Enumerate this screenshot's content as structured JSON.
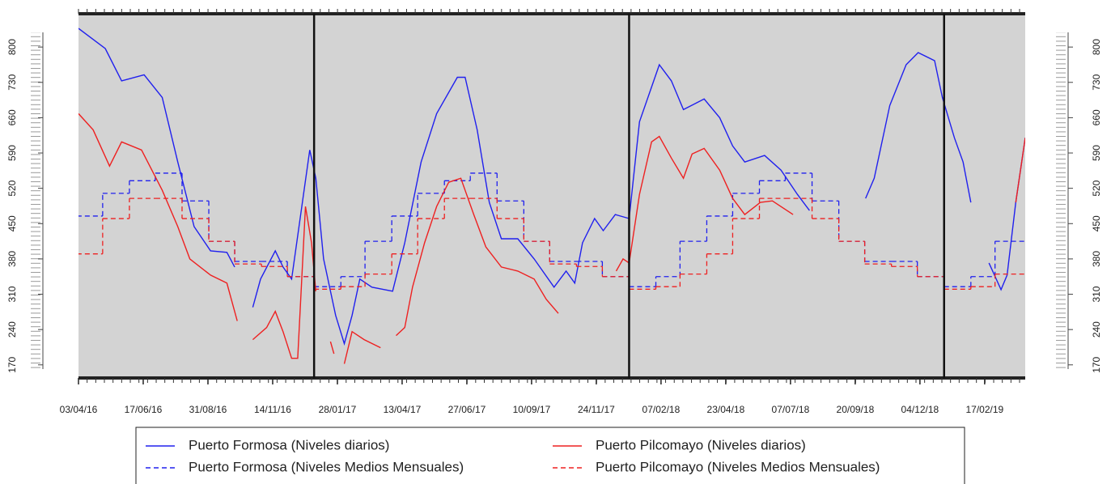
{
  "chart_data": {
    "type": "line",
    "xlim": [
      "2016-04-03",
      "2019-04-05"
    ],
    "ylim": [
      144,
      866
    ],
    "yticks": [
      170,
      240,
      310,
      380,
      450,
      520,
      590,
      660,
      730,
      800
    ],
    "xticks": [
      {
        "value": "2016-04-03",
        "label": "03/04/16"
      },
      {
        "value": "2016-06-17",
        "label": "17/06/16"
      },
      {
        "value": "2016-08-31",
        "label": "31/08/16"
      },
      {
        "value": "2016-11-14",
        "label": "14/11/16"
      },
      {
        "value": "2017-01-28",
        "label": "28/01/17"
      },
      {
        "value": "2017-04-13",
        "label": "13/04/17"
      },
      {
        "value": "2017-06-27",
        "label": "27/06/17"
      },
      {
        "value": "2017-09-10",
        "label": "10/09/17"
      },
      {
        "value": "2017-11-24",
        "label": "24/11/17"
      },
      {
        "value": "2018-02-07",
        "label": "07/02/18"
      },
      {
        "value": "2018-04-23",
        "label": "23/04/18"
      },
      {
        "value": "2018-07-07",
        "label": "07/07/18"
      },
      {
        "value": "2018-09-20",
        "label": "20/09/18"
      },
      {
        "value": "2018-12-04",
        "label": "04/12/18"
      },
      {
        "value": "2019-02-17",
        "label": "17/02/19"
      }
    ],
    "vlines": [
      "2017-01-01",
      "2018-01-01",
      "2019-01-01"
    ],
    "grid": false,
    "legend": "bottom",
    "series": [
      {
        "name": "Puerto Formosa (Niveles diarios)",
        "color": "#2020ee",
        "style": "solid",
        "x": [
          "2016-04-03",
          "2016-05-04",
          "2016-05-23",
          "2016-06-18",
          "2016-07-09",
          "2016-07-27",
          "2016-08-15",
          "2016-09-03",
          "2016-09-22",
          "2016-10-01",
          null,
          "2016-10-22",
          "2016-10-31",
          "2016-11-17",
          "2016-11-26",
          "2016-12-06",
          "2016-12-27",
          "2017-01-03",
          "2017-01-12",
          "2017-01-26",
          "2017-02-05",
          "2017-02-14",
          "2017-02-23",
          "2017-03-09",
          "2017-04-02",
          "2017-04-16",
          "2017-05-05",
          "2017-05-23",
          "2017-06-16",
          "2017-06-25",
          "2017-07-09",
          "2017-07-23",
          "2017-08-06",
          "2017-08-25",
          "2017-09-13",
          "2017-10-06",
          "2017-10-20",
          "2017-10-30",
          "2017-11-08",
          "2017-11-22",
          "2017-12-02",
          "2017-12-16",
          "2018-01-01",
          "2018-01-13",
          "2018-02-05",
          "2018-02-19",
          "2018-03-05",
          "2018-03-29",
          "2018-04-16",
          "2018-05-01",
          "2018-05-15",
          "2018-06-07",
          "2018-06-26",
          "2018-07-15",
          "2018-07-29",
          null,
          "2018-10-02",
          "2018-10-12",
          "2018-10-30",
          "2018-11-18",
          "2018-12-02",
          "2018-12-21",
          "2018-12-30",
          "2019-01-13",
          "2019-01-23",
          "2019-02-01",
          null,
          "2019-02-22",
          "2019-03-08",
          "2019-03-15",
          "2019-03-25",
          "2019-04-05"
        ],
        "values": [
          837,
          797,
          733,
          745,
          700,
          572,
          444,
          396,
          393,
          364,
          null,
          284,
          340,
          396,
          364,
          340,
          596,
          540,
          380,
          268,
          212,
          268,
          340,
          324,
          316,
          412,
          572,
          668,
          740,
          740,
          636,
          492,
          420,
          420,
          380,
          324,
          356,
          332,
          412,
          460,
          436,
          468,
          460,
          652,
          765,
          733,
          676,
          697,
          660,
          604,
          572,
          585,
          556,
          508,
          476,
          null,
          500,
          540,
          684,
          765,
          789,
          773,
          700,
          620,
          572,
          492,
          null,
          372,
          319,
          348,
          492,
          620
        ]
      },
      {
        "name": "Puerto Formosa (Niveles Medios Mensuales)",
        "color": "#2020ee",
        "style": "dashed",
        "x": [
          "2016-04-01",
          "2016-05-01",
          "2016-06-01",
          "2016-07-01",
          "2016-08-01",
          "2016-09-01",
          "2016-10-01",
          "2016-11-01",
          "2016-12-01",
          "2017-01-01",
          "2017-02-01",
          "2017-03-01",
          "2017-04-01",
          "2017-05-01",
          "2017-06-01",
          "2017-07-01",
          "2017-08-01",
          "2017-09-01",
          "2017-10-01",
          "2017-11-01",
          "2017-12-01",
          "2018-01-01",
          "2018-02-01",
          "2018-03-01",
          "2018-04-01",
          "2018-05-01",
          "2018-06-01",
          "2018-07-01",
          "2018-08-01",
          "2018-09-01",
          "2018-10-01",
          "2018-11-01",
          "2018-12-01",
          "2019-01-01",
          "2019-02-01",
          "2019-03-01"
        ],
        "values": [
          465,
          510,
          535,
          550,
          495,
          415,
          375,
          375,
          345,
          325,
          345,
          415,
          465,
          510,
          535,
          550,
          495,
          415,
          375,
          375,
          345,
          325,
          345,
          415,
          465,
          510,
          535,
          550,
          495,
          415,
          375,
          375,
          345,
          325,
          345,
          415
        ]
      },
      {
        "name": "Puerto Pilcomayo (Niveles diarios)",
        "color": "#ee2020",
        "style": "solid",
        "x": [
          "2016-04-03",
          "2016-04-20",
          "2016-05-09",
          "2016-05-23",
          "2016-06-15",
          "2016-07-09",
          "2016-07-27",
          "2016-08-10",
          "2016-09-03",
          "2016-09-22",
          "2016-10-04",
          null,
          "2016-10-22",
          "2016-11-07",
          "2016-11-17",
          "2016-11-26",
          "2016-12-06",
          "2016-12-13",
          "2016-12-22",
          "2016-12-29",
          "2017-01-03",
          null,
          "2017-01-20",
          "2017-01-24",
          null,
          "2017-02-05",
          "2017-02-14",
          "2017-02-28",
          "2017-03-19",
          null,
          "2017-04-06",
          "2017-04-16",
          "2017-04-25",
          "2017-05-09",
          "2017-05-23",
          "2017-06-06",
          "2017-06-20",
          "2017-07-05",
          "2017-07-19",
          "2017-08-06",
          "2017-08-25",
          "2017-09-13",
          "2017-09-27",
          "2017-10-11",
          null,
          "2017-12-17",
          "2017-12-25",
          "2018-01-01",
          "2018-01-13",
          "2018-01-27",
          "2018-02-05",
          "2018-02-19",
          "2018-03-05",
          "2018-03-15",
          "2018-03-29",
          "2018-04-16",
          "2018-05-01",
          "2018-05-15",
          "2018-06-02",
          "2018-06-16",
          "2018-07-10",
          null,
          "2019-03-25",
          "2019-04-05"
        ],
        "values": [
          668,
          636,
          564,
          612,
          596,
          516,
          444,
          380,
          348,
          332,
          257,
          null,
          220,
          244,
          276,
          236,
          183,
          183,
          484,
          412,
          316,
          null,
          216,
          192,
          null,
          172,
          236,
          220,
          204,
          null,
          228,
          244,
          324,
          412,
          484,
          532,
          540,
          468,
          404,
          364,
          356,
          340,
          300,
          272,
          null,
          356,
          380,
          372,
          508,
          612,
          623,
          580,
          540,
          588,
          599,
          556,
          500,
          468,
          492,
          495,
          468,
          null,
          492,
          620
        ]
      },
      {
        "name": "Puerto Pilcomayo (Niveles Medios Mensuales)",
        "color": "#ee2020",
        "style": "dashed",
        "x": [
          "2016-04-01",
          "2016-05-01",
          "2016-06-01",
          "2016-07-01",
          "2016-08-01",
          "2016-09-01",
          "2016-10-01",
          "2016-11-01",
          "2016-12-01",
          "2017-01-01",
          "2017-02-01",
          "2017-03-01",
          "2017-04-01",
          "2017-05-01",
          "2017-06-01",
          "2017-07-01",
          "2017-08-01",
          "2017-09-01",
          "2017-10-01",
          "2017-11-01",
          "2017-12-01",
          "2018-01-01",
          "2018-02-01",
          "2018-03-01",
          "2018-04-01",
          "2018-05-01",
          "2018-06-01",
          "2018-07-01",
          "2018-08-01",
          "2018-09-01",
          "2018-10-01",
          "2018-11-01",
          "2018-12-01",
          "2019-01-01",
          "2019-02-01",
          "2019-03-01"
        ],
        "values": [
          390,
          460,
          500,
          500,
          460,
          415,
          370,
          365,
          345,
          320,
          325,
          350,
          390,
          460,
          500,
          500,
          460,
          415,
          370,
          365,
          345,
          320,
          325,
          350,
          390,
          460,
          500,
          500,
          460,
          415,
          370,
          365,
          345,
          320,
          325,
          350
        ]
      }
    ]
  }
}
